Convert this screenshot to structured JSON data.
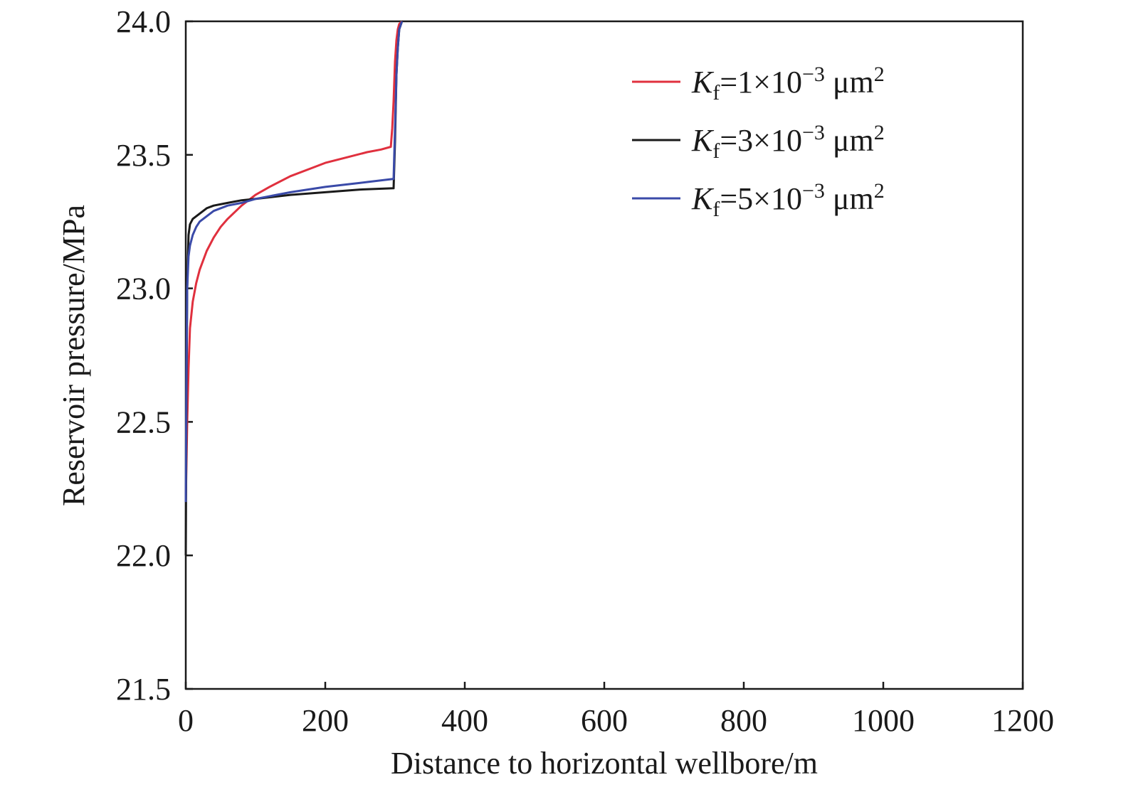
{
  "chart_data": {
    "type": "line",
    "title": "",
    "xlabel": "Distance to horizontal wellbore/m",
    "ylabel": "Reservoir pressure/MPa",
    "xlim": [
      0,
      1200
    ],
    "ylim": [
      21.5,
      24.0
    ],
    "xticks": [
      "0",
      "200",
      "400",
      "600",
      "800",
      "1000",
      "1200"
    ],
    "yticks": [
      "21.5",
      "22.0",
      "22.5",
      "23.0",
      "23.5",
      "24.0"
    ],
    "legend_position": "top-right",
    "grid": false,
    "series": [
      {
        "name": "Kf=1×10⁻³ μm²",
        "legend": {
          "sym": "K",
          "sub": "f",
          "mid": "=1×10",
          "sup": "−3",
          "unit": " μm",
          "unit_sup": "2"
        },
        "color": "#e0303e",
        "x": [
          0,
          2,
          4,
          6,
          10,
          15,
          20,
          30,
          40,
          50,
          60,
          80,
          100,
          120,
          150,
          180,
          200,
          230,
          260,
          280,
          294,
          296,
          298,
          300,
          302,
          304,
          306,
          310
        ],
        "y": [
          22.2,
          22.5,
          22.7,
          22.85,
          22.95,
          23.02,
          23.07,
          23.14,
          23.19,
          23.23,
          23.26,
          23.31,
          23.35,
          23.38,
          23.42,
          23.45,
          23.47,
          23.49,
          23.51,
          23.52,
          23.53,
          23.6,
          23.7,
          23.85,
          23.93,
          23.97,
          23.99,
          24.0
        ]
      },
      {
        "name": "Kf=3×10⁻³ μm²",
        "legend": {
          "sym": "K",
          "sub": "f",
          "mid": "=3×10",
          "sup": "−3",
          "unit": " μm",
          "unit_sup": "2"
        },
        "color": "#1a1a1a",
        "x": [
          0,
          1,
          2,
          4,
          6,
          10,
          15,
          20,
          30,
          40,
          60,
          80,
          100,
          150,
          200,
          250,
          298,
          300,
          302,
          304,
          306,
          310
        ],
        "y": [
          22.0,
          22.6,
          23.0,
          23.2,
          23.24,
          23.26,
          23.27,
          23.28,
          23.3,
          23.31,
          23.32,
          23.33,
          23.335,
          23.35,
          23.36,
          23.37,
          23.375,
          23.55,
          23.8,
          23.9,
          23.97,
          24.0
        ]
      },
      {
        "name": "Kf=5×10⁻³ μm²",
        "legend": {
          "sym": "K",
          "sub": "f",
          "mid": "=5×10",
          "sup": "−3",
          "unit": " μm",
          "unit_sup": "2"
        },
        "color": "#3a4aa8",
        "x": [
          0,
          1,
          2,
          4,
          6,
          10,
          15,
          20,
          30,
          40,
          60,
          80,
          100,
          150,
          200,
          250,
          298,
          300,
          302,
          304,
          306,
          310
        ],
        "y": [
          22.2,
          22.7,
          23.0,
          23.12,
          23.16,
          23.2,
          23.23,
          23.25,
          23.27,
          23.29,
          23.31,
          23.32,
          23.335,
          23.36,
          23.38,
          23.395,
          23.41,
          23.6,
          23.8,
          23.9,
          23.97,
          24.0
        ]
      }
    ]
  }
}
